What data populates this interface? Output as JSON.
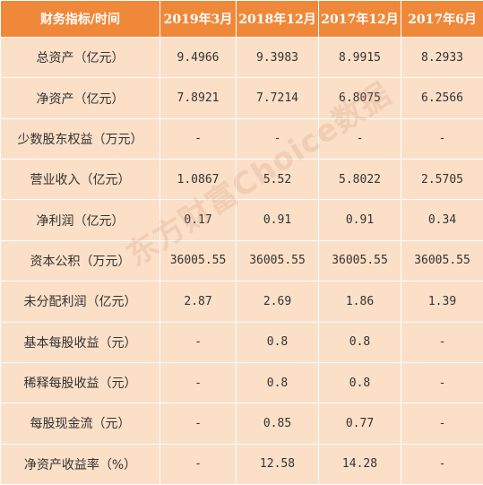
{
  "header": [
    "财务指标/时间",
    "2019年3月",
    "2018年12月",
    "2017年12月",
    "2017年6月"
  ],
  "rows": [
    {
      "label": "总资产（亿元）",
      "values": [
        "9.4966",
        "9.3983",
        "8.9915",
        "8.2933"
      ]
    },
    {
      "label": "净资产（亿元）",
      "values": [
        "7.8921",
        "7.7214",
        "6.8075",
        "6.2566"
      ]
    },
    {
      "label": "少数股东权益（万元）",
      "values": [
        "-",
        "-",
        "-",
        "-"
      ]
    },
    {
      "label": "营业收入（亿元）",
      "values": [
        "1.0867",
        "5.52",
        "5.8022",
        "2.5705"
      ]
    },
    {
      "label": "净利润（亿元）",
      "values": [
        "0.17",
        "0.91",
        "0.91",
        "0.34"
      ]
    },
    {
      "label": "资本公积（万元）",
      "values": [
        "36005.55",
        "36005.55",
        "36005.55",
        "36005.55"
      ]
    },
    {
      "label": "未分配利润（亿元）",
      "values": [
        "2.87",
        "2.69",
        "1.86",
        "1.39"
      ]
    },
    {
      "label": "基本每股收益（元）",
      "values": [
        "-",
        "0.8",
        "0.8",
        "-"
      ]
    },
    {
      "label": "稀释每股收益（元）",
      "values": [
        "-",
        "0.8",
        "0.8",
        "-"
      ]
    },
    {
      "label": "每股现金流（元）",
      "values": [
        "-",
        "0.85",
        "0.77",
        "-"
      ]
    },
    {
      "label": "净资产收益率（%）",
      "values": [
        "-",
        "12.58",
        "14.28",
        "-"
      ]
    }
  ],
  "watermark": "东方财富Choice数据",
  "colors": {
    "header_bg": "#f0883a",
    "cell_bg": "#fbdfc7",
    "border": "#ffffff",
    "text": "#333333"
  }
}
